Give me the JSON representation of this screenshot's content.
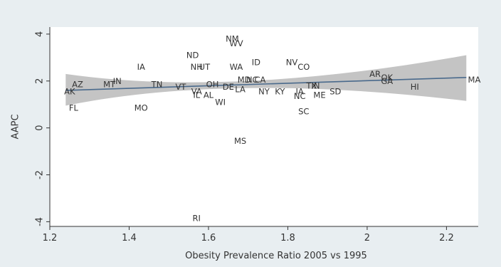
{
  "chart_data": {
    "type": "scatter",
    "title": "",
    "xlabel": "Obesity Prevalence Ratio 2005 vs 1995",
    "ylabel": "AAPC",
    "xlim": [
      1.2,
      2.28
    ],
    "ylim": [
      -4.2,
      4.3
    ],
    "xticks": [
      1.2,
      1.4,
      1.6,
      1.8,
      2,
      2.2
    ],
    "xtick_labels": [
      "1.2",
      "1.4",
      "1.6",
      "1.8",
      "2",
      "2.2"
    ],
    "yticks": [
      -4,
      -2,
      0,
      2,
      4
    ],
    "ytick_labels": [
      "-4",
      "-2",
      "0",
      "2",
      "4"
    ],
    "grid": false,
    "marker": "state abbreviation text labels",
    "fit_line": {
      "type": "linear",
      "x_range": [
        1.24,
        2.25
      ],
      "y_start": 1.6,
      "y_end": 2.15,
      "confidence_band": true,
      "ci_lower": [
        [
          1.24,
          0.95
        ],
        [
          1.7,
          1.7
        ],
        [
          2.25,
          1.15
        ]
      ],
      "ci_upper": [
        [
          1.24,
          2.3
        ],
        [
          1.7,
          2.0
        ],
        [
          2.25,
          3.1
        ]
      ]
    },
    "colors": {
      "background": "#e8eef1",
      "plot_area": "#ffffff",
      "band": "#c4c4c4",
      "line": "#4a6a8c",
      "text": "#333333"
    },
    "points": [
      {
        "label": "NM",
        "x": 1.66,
        "y": 3.8
      },
      {
        "label": "WV",
        "x": 1.67,
        "y": 3.6
      },
      {
        "label": "ND",
        "x": 1.56,
        "y": 3.1
      },
      {
        "label": "IA",
        "x": 1.43,
        "y": 2.6
      },
      {
        "label": "NH",
        "x": 1.57,
        "y": 2.6
      },
      {
        "label": "UT",
        "x": 1.59,
        "y": 2.6
      },
      {
        "label": "WA",
        "x": 1.67,
        "y": 2.6
      },
      {
        "label": "ID",
        "x": 1.72,
        "y": 2.8
      },
      {
        "label": "NV",
        "x": 1.81,
        "y": 2.8
      },
      {
        "label": "CO",
        "x": 1.84,
        "y": 2.6
      },
      {
        "label": "AR",
        "x": 2.02,
        "y": 2.3
      },
      {
        "label": "OK",
        "x": 2.05,
        "y": 2.15
      },
      {
        "label": "GA",
        "x": 2.05,
        "y": 2.0
      },
      {
        "label": "HI",
        "x": 2.12,
        "y": 1.75
      },
      {
        "label": "MA",
        "x": 2.27,
        "y": 2.05
      },
      {
        "label": "AZ",
        "x": 1.27,
        "y": 1.85
      },
      {
        "label": "AK",
        "x": 1.25,
        "y": 1.55
      },
      {
        "label": "IN",
        "x": 1.37,
        "y": 2.0
      },
      {
        "label": "MT",
        "x": 1.35,
        "y": 1.85
      },
      {
        "label": "TN",
        "x": 1.47,
        "y": 1.85
      },
      {
        "label": "VT",
        "x": 1.53,
        "y": 1.75
      },
      {
        "label": "OH",
        "x": 1.61,
        "y": 1.85
      },
      {
        "label": "VA",
        "x": 1.57,
        "y": 1.55
      },
      {
        "label": "IL",
        "x": 1.57,
        "y": 1.4
      },
      {
        "label": "AL",
        "x": 1.6,
        "y": 1.4
      },
      {
        "label": "WI",
        "x": 1.63,
        "y": 1.1
      },
      {
        "label": "DE",
        "x": 1.65,
        "y": 1.75
      },
      {
        "label": "LA",
        "x": 1.68,
        "y": 1.65
      },
      {
        "label": "MD",
        "x": 1.69,
        "y": 2.05
      },
      {
        "label": "NC",
        "x": 1.71,
        "y": 2.05
      },
      {
        "label": "CA",
        "x": 1.73,
        "y": 2.05
      },
      {
        "label": "NY",
        "x": 1.74,
        "y": 1.55
      },
      {
        "label": "KY",
        "x": 1.78,
        "y": 1.55
      },
      {
        "label": "TX",
        "x": 1.86,
        "y": 1.8
      },
      {
        "label": "IN",
        "x": 1.87,
        "y": 1.8
      },
      {
        "label": "IA",
        "x": 1.83,
        "y": 1.55
      },
      {
        "label": "NC",
        "x": 1.83,
        "y": 1.35
      },
      {
        "label": "ME",
        "x": 1.88,
        "y": 1.4
      },
      {
        "label": "SD",
        "x": 1.92,
        "y": 1.55
      },
      {
        "label": "SC",
        "x": 1.84,
        "y": 0.7
      },
      {
        "label": "FL",
        "x": 1.26,
        "y": 0.85
      },
      {
        "label": "MO",
        "x": 1.43,
        "y": 0.85
      },
      {
        "label": "MS",
        "x": 1.68,
        "y": -0.55
      },
      {
        "label": "RI",
        "x": 1.57,
        "y": -3.85
      }
    ]
  }
}
